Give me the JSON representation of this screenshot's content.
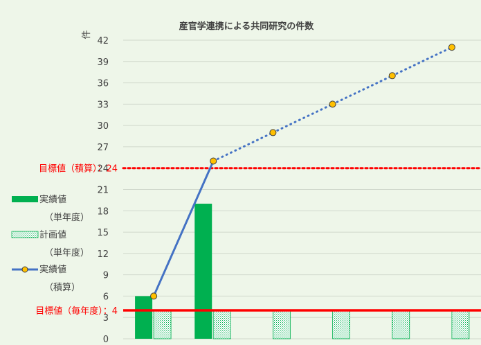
{
  "chart_data": {
    "type": "bar",
    "title": "産官学連携による共同研究の件数",
    "ylabel": "件",
    "xlabel": "",
    "ylim": [
      0,
      42
    ],
    "yticks": [
      0,
      3,
      6,
      9,
      12,
      15,
      18,
      21,
      24,
      27,
      30,
      33,
      36,
      39,
      42
    ],
    "grid": true,
    "categories": [
      "",
      "",
      "",
      "",
      "",
      ""
    ],
    "series": [
      {
        "name": "実績値（単年度）",
        "kind": "bar",
        "color": "#00b050",
        "values": [
          6,
          19,
          null,
          null,
          null,
          null
        ]
      },
      {
        "name": "計画値（単年度）",
        "kind": "bar-pattern",
        "color": "#00b050",
        "values": [
          4,
          4,
          4,
          4,
          4,
          4
        ]
      },
      {
        "name": "実績値（積算）",
        "kind": "line",
        "color": "#4472c4",
        "marker_color": "#ffc000",
        "values": [
          6,
          25,
          29,
          33,
          37,
          41
        ],
        "actual_points": 2
      }
    ],
    "reference_lines": [
      {
        "label": "目標値（積算）：24",
        "value": 24,
        "color": "#ff0000",
        "style": "dotted"
      },
      {
        "label": "目標値（毎年度）：4",
        "value": 4,
        "color": "#ff0000",
        "style": "solid"
      }
    ],
    "legend": {
      "position": "left",
      "items": [
        {
          "line1": "実績値",
          "line2": "（単年度）",
          "type": "solid-bar",
          "color": "#00b050"
        },
        {
          "line1": "計画値",
          "line2": "（単年度）",
          "type": "pattern-bar",
          "color": "#00b050"
        },
        {
          "line1": "実績値",
          "line2": "（積算）",
          "type": "line-marker",
          "color": "#4472c4",
          "marker_color": "#ffc000"
        }
      ]
    }
  }
}
